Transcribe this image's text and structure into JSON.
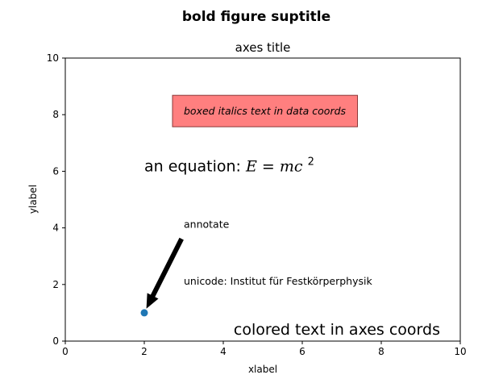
{
  "suptitle": "bold figure suptitle",
  "chart_data": {
    "type": "scatter",
    "title": "axes title",
    "xlabel": "xlabel",
    "ylabel": "ylabel",
    "xlim": [
      0,
      10
    ],
    "ylim": [
      0,
      10
    ],
    "xticks": [
      0,
      2,
      4,
      6,
      8,
      10
    ],
    "yticks": [
      0,
      2,
      4,
      6,
      8,
      10
    ],
    "grid": false,
    "points": [
      {
        "x": 2,
        "y": 1
      }
    ],
    "point_color": "#1f77b4",
    "boxed_text": {
      "text": "boxed italics text in data coords",
      "x": 3,
      "y": 8,
      "box_color": "#ff7f7f"
    },
    "equation": {
      "prefix": "an equation: ",
      "x": 2,
      "y": 6
    },
    "annotation": {
      "text": "annotate",
      "xy": [
        2,
        1
      ],
      "xytext": [
        3,
        4
      ]
    },
    "unicode_text": {
      "text": "unicode: Institut für Festkörperphysik",
      "x": 3,
      "y": 2
    },
    "colored_text": {
      "text": "colored text in axes coords",
      "color": "#008000"
    }
  }
}
